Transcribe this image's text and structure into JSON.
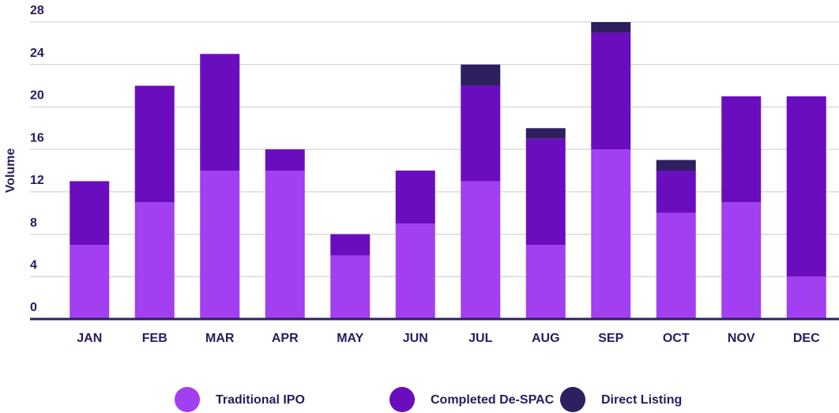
{
  "chart_data": {
    "type": "stacked_bar",
    "y_label": "Volume",
    "categories": [
      "JAN",
      "FEB",
      "MAR",
      "APR",
      "MAY",
      "JUN",
      "JUL",
      "AUG",
      "SEP",
      "OCT",
      "NOV",
      "DEC"
    ],
    "series": [
      {
        "name": "Traditional IPO",
        "color": "#a23ff0",
        "values": [
          7,
          11,
          14,
          14,
          6,
          9,
          13,
          7,
          16,
          10,
          11,
          4
        ]
      },
      {
        "name": "Completed De-SPAC",
        "color": "#6a0dbf",
        "values": [
          6,
          11,
          11,
          2,
          2,
          5,
          9,
          10,
          11,
          4,
          10,
          17
        ]
      },
      {
        "name": "Direct Listing",
        "color": "#2e1f5f",
        "values": [
          0,
          0,
          0,
          0,
          0,
          0,
          2,
          1,
          1,
          1,
          0,
          0
        ]
      }
    ],
    "ylim": [
      0,
      28
    ],
    "yticks": [
      0,
      4,
      8,
      12,
      16,
      20,
      24,
      28
    ],
    "grid": true
  }
}
